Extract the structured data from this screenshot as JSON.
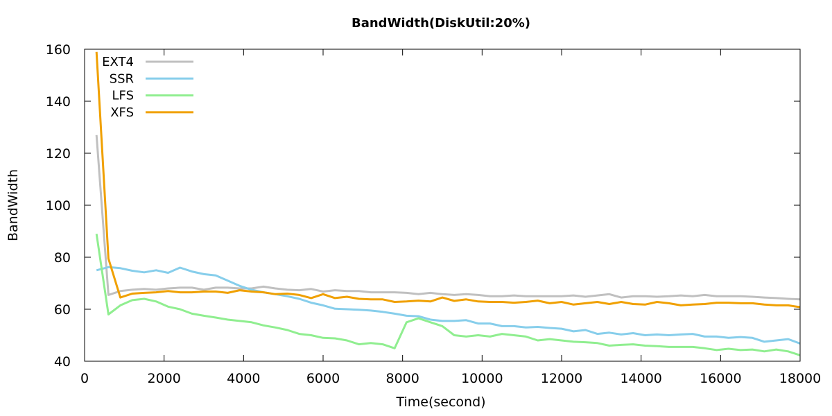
{
  "chart_data": {
    "type": "line",
    "title": "BandWidth(DiskUtil:20%)",
    "xlabel": "Time(second)",
    "ylabel": "BandWidth",
    "xlim": [
      0,
      18000
    ],
    "ylim": [
      40,
      160
    ],
    "xticks": [
      0,
      2000,
      4000,
      6000,
      8000,
      10000,
      12000,
      14000,
      16000,
      18000
    ],
    "yticks": [
      40,
      60,
      80,
      100,
      120,
      140,
      160
    ],
    "grid": false,
    "legend_position": "top-left",
    "series": [
      {
        "name": "EXT4",
        "color": "#c0c0c0",
        "points": [
          [
            300,
            127
          ],
          [
            600,
            65.5
          ],
          [
            900,
            67
          ],
          [
            1200,
            67.5
          ],
          [
            1500,
            67.8
          ],
          [
            1800,
            67.5
          ],
          [
            2100,
            68
          ],
          [
            2400,
            68.3
          ],
          [
            2700,
            68.3
          ],
          [
            3000,
            67.5
          ],
          [
            3300,
            68.3
          ],
          [
            3600,
            68.3
          ],
          [
            3900,
            68
          ],
          [
            4200,
            68
          ],
          [
            4500,
            68.7
          ],
          [
            4800,
            68
          ],
          [
            5100,
            67.5
          ],
          [
            5400,
            67.3
          ],
          [
            5700,
            67.8
          ],
          [
            6000,
            66.8
          ],
          [
            6300,
            67.3
          ],
          [
            6600,
            67
          ],
          [
            6900,
            67
          ],
          [
            7200,
            66.5
          ],
          [
            7500,
            66.5
          ],
          [
            7800,
            66.5
          ],
          [
            8100,
            66.3
          ],
          [
            8400,
            65.8
          ],
          [
            8700,
            66.3
          ],
          [
            9000,
            65.8
          ],
          [
            9300,
            65.5
          ],
          [
            9600,
            65.8
          ],
          [
            9900,
            65.5
          ],
          [
            10200,
            65
          ],
          [
            10500,
            65
          ],
          [
            10800,
            65.3
          ],
          [
            11100,
            65
          ],
          [
            11400,
            65
          ],
          [
            11700,
            65
          ],
          [
            12000,
            65
          ],
          [
            12300,
            65.3
          ],
          [
            12600,
            64.8
          ],
          [
            12900,
            65.3
          ],
          [
            13200,
            65.8
          ],
          [
            13500,
            64.5
          ],
          [
            13800,
            65
          ],
          [
            14100,
            65
          ],
          [
            14400,
            64.8
          ],
          [
            14700,
            65
          ],
          [
            15000,
            65.3
          ],
          [
            15300,
            65
          ],
          [
            15600,
            65.5
          ],
          [
            15900,
            65
          ],
          [
            16200,
            65
          ],
          [
            16500,
            65
          ],
          [
            16800,
            64.8
          ],
          [
            17100,
            64.5
          ],
          [
            17400,
            64.3
          ],
          [
            17700,
            64
          ],
          [
            18000,
            63.8
          ]
        ]
      },
      {
        "name": "SSR",
        "color": "#87ceeb",
        "points": [
          [
            300,
            75
          ],
          [
            600,
            76.2
          ],
          [
            900,
            75.8
          ],
          [
            1200,
            74.8
          ],
          [
            1500,
            74.2
          ],
          [
            1800,
            75
          ],
          [
            2100,
            74
          ],
          [
            2400,
            76
          ],
          [
            2700,
            74.5
          ],
          [
            3000,
            73.5
          ],
          [
            3300,
            73
          ],
          [
            3600,
            71
          ],
          [
            3900,
            69
          ],
          [
            4200,
            67.5
          ],
          [
            4500,
            66.5
          ],
          [
            4800,
            65.8
          ],
          [
            5100,
            65
          ],
          [
            5400,
            64
          ],
          [
            5700,
            62.5
          ],
          [
            6000,
            61.5
          ],
          [
            6300,
            60.2
          ],
          [
            6600,
            60
          ],
          [
            6900,
            59.8
          ],
          [
            7200,
            59.5
          ],
          [
            7500,
            59
          ],
          [
            7800,
            58.3
          ],
          [
            8100,
            57.5
          ],
          [
            8400,
            57.3
          ],
          [
            8700,
            56
          ],
          [
            9000,
            55.5
          ],
          [
            9300,
            55.5
          ],
          [
            9600,
            55.8
          ],
          [
            9900,
            54.5
          ],
          [
            10200,
            54.5
          ],
          [
            10500,
            53.5
          ],
          [
            10800,
            53.5
          ],
          [
            11100,
            53
          ],
          [
            11400,
            53.2
          ],
          [
            11700,
            52.8
          ],
          [
            12000,
            52.5
          ],
          [
            12300,
            51.5
          ],
          [
            12600,
            52
          ],
          [
            12900,
            50.5
          ],
          [
            13200,
            51
          ],
          [
            13500,
            50.3
          ],
          [
            13800,
            50.8
          ],
          [
            14100,
            50
          ],
          [
            14400,
            50.3
          ],
          [
            14700,
            50
          ],
          [
            15000,
            50.3
          ],
          [
            15300,
            50.5
          ],
          [
            15600,
            49.5
          ],
          [
            15900,
            49.5
          ],
          [
            16200,
            49
          ],
          [
            16500,
            49.3
          ],
          [
            16800,
            49
          ],
          [
            17100,
            47.5
          ],
          [
            17400,
            48
          ],
          [
            17700,
            48.5
          ],
          [
            18000,
            46.8
          ]
        ]
      },
      {
        "name": "LFS",
        "color": "#90ee90",
        "points": [
          [
            300,
            89
          ],
          [
            600,
            58
          ],
          [
            900,
            61.5
          ],
          [
            1200,
            63.5
          ],
          [
            1500,
            64
          ],
          [
            1800,
            63
          ],
          [
            2100,
            61
          ],
          [
            2400,
            60
          ],
          [
            2700,
            58.3
          ],
          [
            3000,
            57.5
          ],
          [
            3300,
            56.8
          ],
          [
            3600,
            56
          ],
          [
            3900,
            55.5
          ],
          [
            4200,
            55
          ],
          [
            4500,
            53.8
          ],
          [
            4800,
            53
          ],
          [
            5100,
            52
          ],
          [
            5400,
            50.5
          ],
          [
            5700,
            50
          ],
          [
            6000,
            49
          ],
          [
            6300,
            48.8
          ],
          [
            6600,
            48
          ],
          [
            6900,
            46.5
          ],
          [
            7200,
            47
          ],
          [
            7500,
            46.5
          ],
          [
            7800,
            45
          ],
          [
            8100,
            55
          ],
          [
            8400,
            56.5
          ],
          [
            8700,
            55
          ],
          [
            9000,
            53.5
          ],
          [
            9300,
            50
          ],
          [
            9600,
            49.5
          ],
          [
            9900,
            50
          ],
          [
            10200,
            49.5
          ],
          [
            10500,
            50.5
          ],
          [
            10800,
            50
          ],
          [
            11100,
            49.5
          ],
          [
            11400,
            48
          ],
          [
            11700,
            48.5
          ],
          [
            12000,
            48
          ],
          [
            12300,
            47.5
          ],
          [
            12600,
            47.3
          ],
          [
            12900,
            47
          ],
          [
            13200,
            46
          ],
          [
            13500,
            46.3
          ],
          [
            13800,
            46.5
          ],
          [
            14100,
            46
          ],
          [
            14400,
            45.8
          ],
          [
            14700,
            45.5
          ],
          [
            15000,
            45.5
          ],
          [
            15300,
            45.5
          ],
          [
            15600,
            45
          ],
          [
            15900,
            44.3
          ],
          [
            16200,
            44.8
          ],
          [
            16500,
            44.3
          ],
          [
            16800,
            44.5
          ],
          [
            17100,
            43.8
          ],
          [
            17400,
            44.5
          ],
          [
            17700,
            43.8
          ],
          [
            18000,
            42.3
          ]
        ]
      },
      {
        "name": "XFS",
        "color": "#f0a000",
        "points": [
          [
            300,
            159
          ],
          [
            600,
            79.5
          ],
          [
            900,
            64.5
          ],
          [
            1200,
            66
          ],
          [
            1500,
            66.3
          ],
          [
            1800,
            66.5
          ],
          [
            2100,
            67
          ],
          [
            2400,
            66.5
          ],
          [
            2700,
            66.5
          ],
          [
            3000,
            66.8
          ],
          [
            3300,
            66.8
          ],
          [
            3600,
            66.3
          ],
          [
            3900,
            67.3
          ],
          [
            4200,
            66.8
          ],
          [
            4500,
            66.5
          ],
          [
            4800,
            65.8
          ],
          [
            5100,
            66
          ],
          [
            5400,
            65.5
          ],
          [
            5700,
            64.3
          ],
          [
            6000,
            65.8
          ],
          [
            6300,
            64.3
          ],
          [
            6600,
            64.8
          ],
          [
            6900,
            64
          ],
          [
            7200,
            63.8
          ],
          [
            7500,
            63.8
          ],
          [
            7800,
            62.8
          ],
          [
            8100,
            63
          ],
          [
            8400,
            63.3
          ],
          [
            8700,
            63
          ],
          [
            9000,
            64.5
          ],
          [
            9300,
            63.2
          ],
          [
            9600,
            63.8
          ],
          [
            9900,
            63
          ],
          [
            10200,
            62.8
          ],
          [
            10500,
            62.8
          ],
          [
            10800,
            62.5
          ],
          [
            11100,
            62.8
          ],
          [
            11400,
            63.3
          ],
          [
            11700,
            62.3
          ],
          [
            12000,
            62.8
          ],
          [
            12300,
            61.8
          ],
          [
            12600,
            62.3
          ],
          [
            12900,
            62.8
          ],
          [
            13200,
            62
          ],
          [
            13500,
            62.8
          ],
          [
            13800,
            62
          ],
          [
            14100,
            61.8
          ],
          [
            14400,
            62.8
          ],
          [
            14700,
            62.3
          ],
          [
            15000,
            61.5
          ],
          [
            15300,
            61.8
          ],
          [
            15600,
            62
          ],
          [
            15900,
            62.5
          ],
          [
            16200,
            62.5
          ],
          [
            16500,
            62.3
          ],
          [
            16800,
            62.3
          ],
          [
            17100,
            61.8
          ],
          [
            17400,
            61.5
          ],
          [
            17700,
            61.5
          ],
          [
            18000,
            60.8
          ]
        ]
      }
    ]
  }
}
